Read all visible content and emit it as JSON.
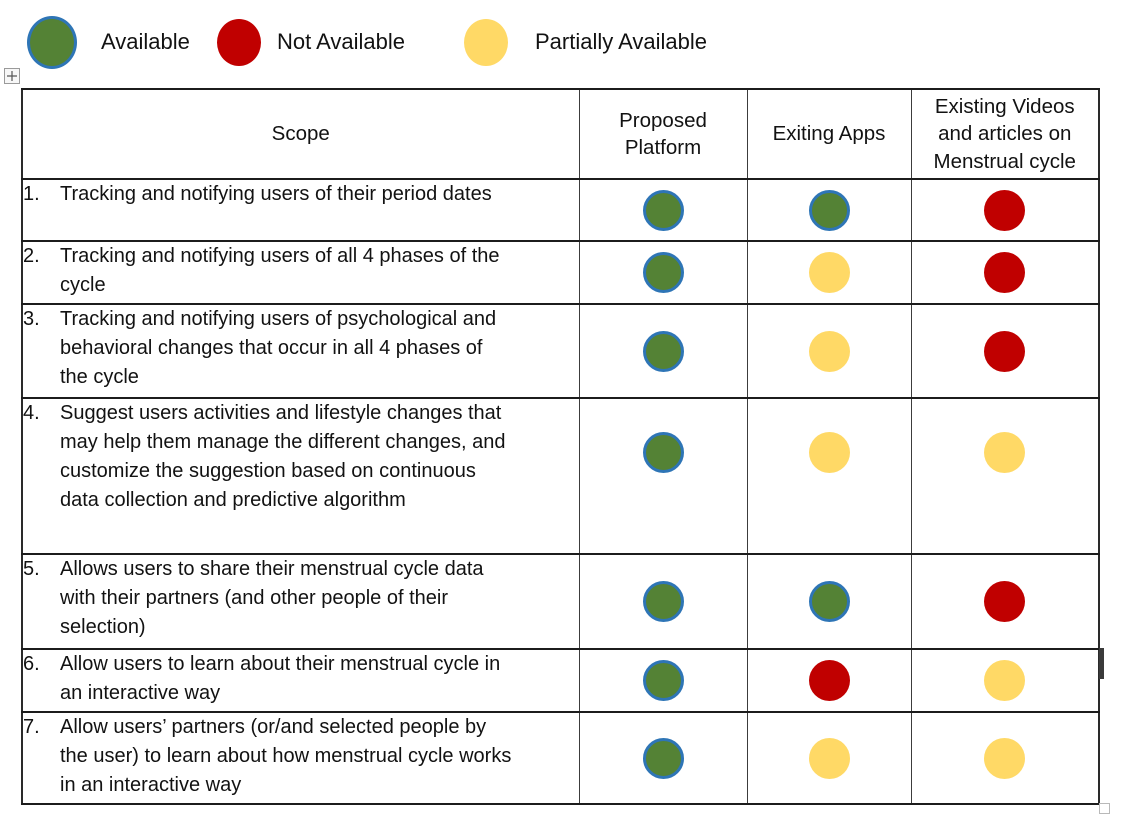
{
  "legend": {
    "items": [
      {
        "label": "Available",
        "status": "available"
      },
      {
        "label": "Not Available",
        "status": "not-available"
      },
      {
        "label": "Partially Available",
        "status": "partially-available"
      }
    ]
  },
  "colors": {
    "available_fill": "#548235",
    "available_border": "#2e75b6",
    "not_available_fill": "#c00000",
    "partially_available_fill": "#ffd966"
  },
  "table": {
    "headers": [
      "Scope",
      "Proposed Platform",
      "Exiting Apps",
      "Existing Videos and articles on Menstrual cycle"
    ],
    "rows": [
      {
        "num": "1.",
        "scope": "Tracking and notifying users of their period dates",
        "proposed_platform": "available",
        "exiting_apps": "available",
        "existing_videos": "not-available"
      },
      {
        "num": "2.",
        "scope": "Tracking and notifying users of all 4 phases of the cycle",
        "proposed_platform": "available",
        "exiting_apps": "partially-available",
        "existing_videos": "not-available"
      },
      {
        "num": "3.",
        "scope": "Tracking and notifying users of psychological and behavioral changes that occur in all 4 phases of the cycle",
        "proposed_platform": "available",
        "exiting_apps": "partially-available",
        "existing_videos": "not-available"
      },
      {
        "num": "4.",
        "scope": "Suggest users activities and lifestyle changes that may help them manage the different changes, and customize the suggestion based on continuous data collection and predictive algorithm",
        "proposed_platform": "available",
        "exiting_apps": "partially-available",
        "existing_videos": "partially-available"
      },
      {
        "num": "5.",
        "scope": "Allows users to share their menstrual cycle data with their partners (and other people of their selection)",
        "proposed_platform": "available",
        "exiting_apps": "available",
        "existing_videos": "not-available"
      },
      {
        "num": "6.",
        "scope": "Allow users to learn about their menstrual cycle in an interactive way",
        "proposed_platform": "available",
        "exiting_apps": "not-available",
        "existing_videos": "partially-available"
      },
      {
        "num": "7.",
        "scope": "Allow users’ partners (or/and selected people by the user) to learn about how menstrual cycle works in an interactive way",
        "proposed_platform": "available",
        "exiting_apps": "partially-available",
        "existing_videos": "partially-available"
      }
    ]
  }
}
